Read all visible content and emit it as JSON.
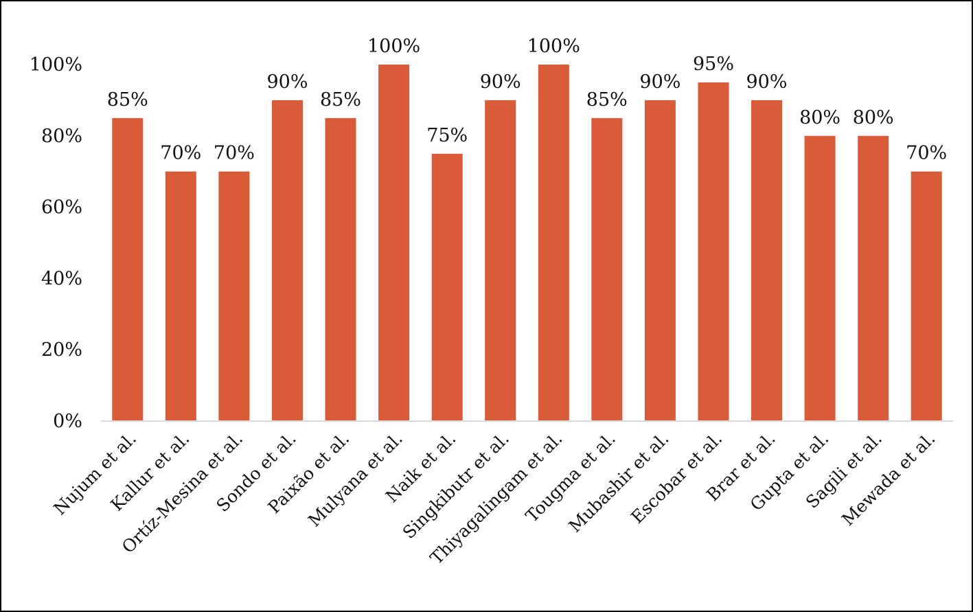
{
  "chart_data": {
    "type": "bar",
    "title": "",
    "xlabel": "",
    "ylabel": "",
    "ylim": [
      0,
      100
    ],
    "yticks": [
      "0%",
      "20%",
      "40%",
      "60%",
      "80%",
      "100%"
    ],
    "grid": false,
    "bar_color": "#D95B37",
    "categories": [
      "Nujum et al.",
      "Kallur et al.",
      "Ortíz-Mesina et al.",
      "Sondo et al.",
      "Paixão et al.",
      "Mulyana et al.",
      "Naik et al.",
      "Singkibutr et al.",
      "Thiyagalingam et al.",
      "Tougma et al.",
      "Mubashir et al.",
      "Escobar et al.",
      "Brar et al.",
      "Gupta et al.",
      "Sagili et al.",
      "Mewada et al."
    ],
    "values": [
      85,
      70,
      70,
      90,
      85,
      100,
      75,
      90,
      100,
      85,
      90,
      95,
      90,
      80,
      80,
      70
    ],
    "data_labels": [
      "85%",
      "70%",
      "70%",
      "90%",
      "85%",
      "100%",
      "75%",
      "90%",
      "100%",
      "85%",
      "90%",
      "95%",
      "90%",
      "80%",
      "80%",
      "70%"
    ]
  }
}
